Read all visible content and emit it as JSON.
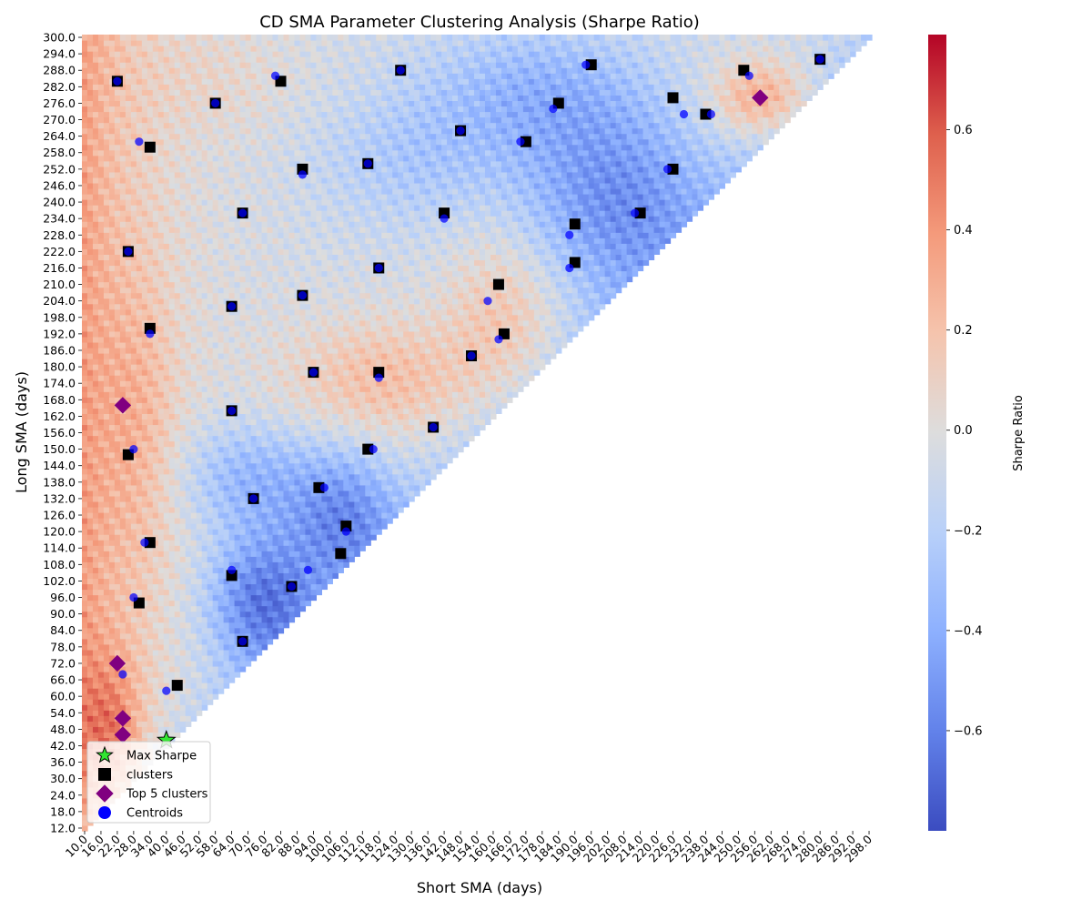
{
  "chart_data": {
    "type": "heatmap",
    "title": "CD SMA Parameter Clustering Analysis (Sharpe Ratio)",
    "xlabel": "Short SMA (days)",
    "ylabel": "Long SMA (days)",
    "colorbar_label": "Sharpe Ratio",
    "colormap": "coolwarm",
    "color_range": [
      -0.8,
      0.79
    ],
    "colorbar_ticks": [
      "0.6",
      "0.4",
      "0.2",
      "0.0",
      "−0.2",
      "−0.4",
      "−0.6"
    ],
    "colorbar_tick_values": [
      0.6,
      0.4,
      0.2,
      0.0,
      -0.2,
      -0.4,
      -0.6
    ],
    "x_range": [
      10,
      300
    ],
    "y_range": [
      12,
      300
    ],
    "cell_step": 2,
    "x_tick_step": 6,
    "y_tick_step": 6,
    "grid": false,
    "legend_position": "lower-left",
    "legend": [
      {
        "label": "Max Sharpe",
        "marker": "star",
        "color": "#32e632"
      },
      {
        "label": "clusters",
        "marker": "square",
        "color": "#000000"
      },
      {
        "label": "Top 5 clusters",
        "marker": "diamond",
        "color": "#800080"
      },
      {
        "label": "Centroids",
        "marker": "circle",
        "color": "#0000ff"
      }
    ],
    "max_sharpe": {
      "x": 40,
      "y": 44
    },
    "clusters": [
      [
        22,
        284
      ],
      [
        58,
        276
      ],
      [
        82,
        284
      ],
      [
        126,
        288
      ],
      [
        196,
        290
      ],
      [
        252,
        288
      ],
      [
        280,
        292
      ],
      [
        184,
        276
      ],
      [
        226,
        278
      ],
      [
        238,
        272
      ],
      [
        34,
        260
      ],
      [
        148,
        266
      ],
      [
        172,
        262
      ],
      [
        90,
        252
      ],
      [
        114,
        254
      ],
      [
        226,
        252
      ],
      [
        68,
        236
      ],
      [
        142,
        236
      ],
      [
        190,
        232
      ],
      [
        214,
        236
      ],
      [
        26,
        222
      ],
      [
        118,
        216
      ],
      [
        190,
        218
      ],
      [
        162,
        210
      ],
      [
        64,
        202
      ],
      [
        90,
        206
      ],
      [
        34,
        194
      ],
      [
        164,
        192
      ],
      [
        94,
        178
      ],
      [
        152,
        184
      ],
      [
        118,
        178
      ],
      [
        64,
        164
      ],
      [
        138,
        158
      ],
      [
        26,
        148
      ],
      [
        114,
        150
      ],
      [
        96,
        136
      ],
      [
        72,
        132
      ],
      [
        106,
        122
      ],
      [
        34,
        116
      ],
      [
        104,
        112
      ],
      [
        64,
        104
      ],
      [
        86,
        100
      ],
      [
        30,
        94
      ],
      [
        68,
        80
      ],
      [
        44,
        64
      ]
    ],
    "top5_clusters": [
      [
        24,
        166
      ],
      [
        22,
        72
      ],
      [
        24,
        52
      ],
      [
        24,
        46
      ],
      [
        258,
        278
      ]
    ],
    "centroids": [
      [
        22,
        284
      ],
      [
        80,
        286
      ],
      [
        58,
        276
      ],
      [
        126,
        288
      ],
      [
        194,
        290
      ],
      [
        254,
        286
      ],
      [
        280,
        292
      ],
      [
        182,
        274
      ],
      [
        230,
        272
      ],
      [
        240,
        272
      ],
      [
        30,
        262
      ],
      [
        148,
        266
      ],
      [
        170,
        262
      ],
      [
        90,
        250
      ],
      [
        114,
        254
      ],
      [
        224,
        252
      ],
      [
        68,
        236
      ],
      [
        142,
        234
      ],
      [
        188,
        228
      ],
      [
        188,
        216
      ],
      [
        212,
        236
      ],
      [
        26,
        222
      ],
      [
        118,
        216
      ],
      [
        158,
        204
      ],
      [
        162,
        190
      ],
      [
        64,
        202
      ],
      [
        90,
        206
      ],
      [
        34,
        192
      ],
      [
        94,
        178
      ],
      [
        152,
        184
      ],
      [
        118,
        176
      ],
      [
        64,
        164
      ],
      [
        138,
        158
      ],
      [
        28,
        150
      ],
      [
        116,
        150
      ],
      [
        98,
        136
      ],
      [
        72,
        132
      ],
      [
        106,
        120
      ],
      [
        32,
        116
      ],
      [
        92,
        106
      ],
      [
        64,
        106
      ],
      [
        86,
        100
      ],
      [
        28,
        96
      ],
      [
        68,
        80
      ],
      [
        24,
        68
      ],
      [
        40,
        62
      ],
      [
        24,
        166
      ],
      [
        22,
        72
      ],
      [
        24,
        52
      ],
      [
        24,
        46
      ],
      [
        258,
        278
      ]
    ]
  }
}
